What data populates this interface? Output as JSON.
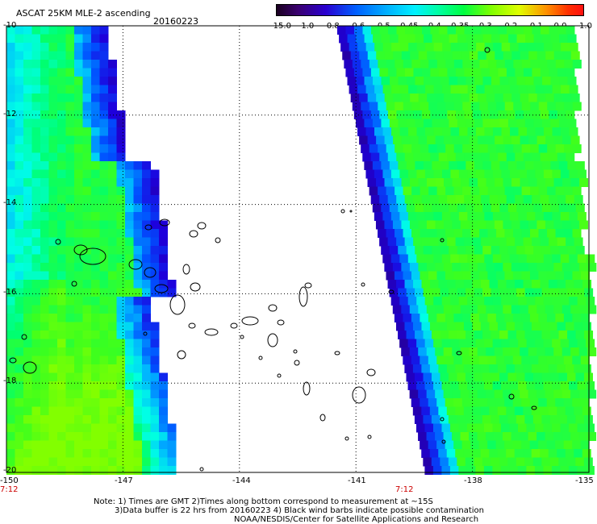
{
  "title": "ASCAT 25KM MLE-2 ascending",
  "date": "20160223",
  "colorbar": {
    "labels": [
      "-15.0",
      "-1.0",
      "-0.8",
      "-0.6",
      "-0.5",
      "-0.45",
      "-0.4",
      "-0.35",
      "-0.3",
      "-0.2",
      "-0.1",
      "0.0",
      "1.0"
    ],
    "colors": [
      "#2a0032",
      "#3a0070",
      "#2a00c8",
      "#0050ff",
      "#00a8ff",
      "#00e8ff",
      "#00ffb0",
      "#00ff50",
      "#60ff00",
      "#c8ff00",
      "#ffe000",
      "#ff8000",
      "#ff2000"
    ]
  },
  "axes": {
    "lat_labels": [
      "-10",
      "-12",
      "-14",
      "-16",
      "-18",
      "-20"
    ],
    "lon_labels": [
      "-150",
      "-147",
      "-144",
      "-141",
      "-138",
      "-135"
    ],
    "lon_range": [
      -150,
      -135
    ],
    "lat_range": [
      -20,
      -10
    ]
  },
  "times": [
    "7:12",
    "7:12"
  ],
  "notes": [
    "Note: 1) Times are GMT 2)Times along bottom correspond to measurement at ~15S",
    "3)Data buffer is 22 hrs from 20160223 4) Black wind barbs indicate possible contamination",
    "NOAA/NESDIS/Center for Satellite Applications and Research"
  ]
}
